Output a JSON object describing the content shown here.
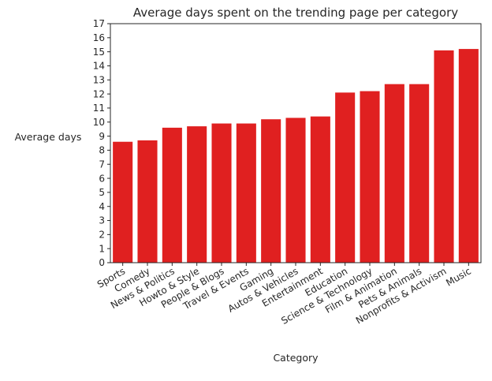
{
  "chart_data": {
    "type": "bar",
    "title": "Average days spent on the trending page per category",
    "xlabel": "Category",
    "ylabel": "Average days",
    "categories": [
      "Sports",
      "Comedy",
      "News & Politics",
      "Howto & Style",
      "People & Blogs",
      "Travel & Events",
      "Gaming",
      "Autos & Vehicles",
      "Entertainment",
      "Education",
      "Science & Technology",
      "Film & Animation",
      "Pets & Animals",
      "Nonprofits & Activism",
      "Music"
    ],
    "values": [
      8.6,
      8.7,
      9.6,
      9.7,
      9.9,
      9.9,
      10.2,
      10.3,
      10.4,
      12.1,
      12.2,
      12.7,
      12.7,
      15.1,
      15.2
    ],
    "ylim": [
      0,
      17
    ],
    "yticks": [
      0,
      1,
      2,
      3,
      4,
      5,
      6,
      7,
      8,
      9,
      10,
      11,
      12,
      13,
      14,
      15,
      16,
      17
    ],
    "grid": false,
    "bar_color": "#e02020"
  }
}
